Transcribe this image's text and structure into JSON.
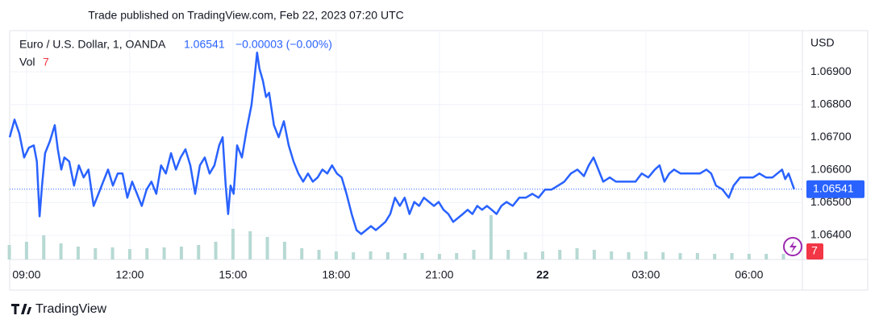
{
  "header": {
    "published": "Trade published on TradingView.com, Feb 22, 2023 07:20 UTC",
    "change": "−0.00003 (−0.00%)",
    "vol_label": "Vol",
    "currency": "USD",
    "brand": "TradingView"
  },
  "chart_data": {
    "type": "line",
    "last_price": 1.06541,
    "xlim": [
      8.51,
      31.55
    ],
    "ylim": [
      1.06326,
      1.07026
    ],
    "grid": true,
    "xticks": [
      {
        "value": 9,
        "label": "09:00"
      },
      {
        "value": 12,
        "label": "12:00"
      },
      {
        "value": 15,
        "label": "15:00"
      },
      {
        "value": 18,
        "label": "18:00"
      },
      {
        "value": 21,
        "label": "21:00"
      },
      {
        "value": 24,
        "label": "22"
      },
      {
        "value": 27,
        "label": "03:00"
      },
      {
        "value": 30,
        "label": "06:00"
      }
    ],
    "yticks": [
      {
        "value": 1.064,
        "label": "1.06400"
      },
      {
        "value": 1.065,
        "label": "1.06500"
      },
      {
        "value": 1.066,
        "label": "1.06600"
      },
      {
        "value": 1.067,
        "label": "1.06700"
      },
      {
        "value": 1.068,
        "label": "1.06800"
      },
      {
        "value": 1.069,
        "label": "1.06900"
      }
    ],
    "x": [
      8.51,
      8.65,
      8.79,
      8.93,
      9.07,
      9.21,
      9.3,
      9.38,
      9.45,
      9.54,
      9.68,
      9.82,
      9.91,
      10.01,
      10.1,
      10.24,
      10.38,
      10.52,
      10.66,
      10.8,
      10.95,
      11.09,
      11.23,
      11.37,
      11.51,
      11.65,
      11.79,
      11.93,
      12.07,
      12.21,
      12.35,
      12.49,
      12.63,
      12.77,
      12.91,
      13.05,
      13.2,
      13.34,
      13.48,
      13.62,
      13.76,
      13.9,
      14.04,
      14.18,
      14.32,
      14.46,
      14.6,
      14.7,
      14.79,
      14.86,
      14.93,
      15.02,
      15.12,
      15.26,
      15.4,
      15.54,
      15.63,
      15.7,
      15.77,
      15.87,
      15.96,
      16.05,
      16.19,
      16.33,
      16.48,
      16.62,
      16.76,
      16.9,
      17.04,
      17.18,
      17.32,
      17.46,
      17.6,
      17.74,
      17.88,
      18.02,
      18.16,
      18.3,
      18.45,
      18.59,
      18.73,
      18.87,
      19.01,
      19.15,
      19.29,
      19.43,
      19.57,
      19.71,
      19.85,
      19.99,
      20.13,
      20.27,
      20.41,
      20.55,
      20.7,
      20.84,
      20.98,
      21.12,
      21.26,
      21.4,
      21.54,
      21.68,
      21.82,
      21.96,
      22.1,
      22.24,
      22.38,
      22.52,
      22.66,
      22.8,
      22.95,
      23.13,
      23.32,
      23.51,
      23.7,
      23.88,
      24.07,
      24.26,
      24.45,
      24.63,
      24.82,
      25.01,
      25.2,
      25.34,
      25.48,
      25.62,
      25.76,
      25.95,
      26.13,
      26.32,
      26.51,
      26.7,
      26.88,
      27.07,
      27.26,
      27.4,
      27.54,
      27.68,
      27.82,
      28.01,
      28.2,
      28.38,
      28.57,
      28.76,
      28.9,
      29.04,
      29.23,
      29.41,
      29.55,
      29.74,
      29.93,
      30.12,
      30.3,
      30.49,
      30.68,
      30.82,
      30.96,
      31.05,
      31.15,
      31.31
    ],
    "series": [
      {
        "name": "Euro / U.S. Dollar, 1, OANDA",
        "color": "#2962ff",
        "values": [
          1.067,
          1.06754,
          1.06712,
          1.06638,
          1.06668,
          1.06675,
          1.06626,
          1.06458,
          1.06552,
          1.06651,
          1.06688,
          1.06737,
          1.06663,
          1.06601,
          1.06638,
          1.06626,
          1.06552,
          1.06614,
          1.06577,
          1.06601,
          1.0649,
          1.06527,
          1.06564,
          1.06601,
          1.06552,
          1.06589,
          1.06589,
          1.06515,
          1.06564,
          1.06527,
          1.0649,
          1.0654,
          1.06564,
          1.06527,
          1.06614,
          1.06589,
          1.06651,
          1.06601,
          1.06638,
          1.06663,
          1.06614,
          1.06527,
          1.06614,
          1.06638,
          1.06589,
          1.06614,
          1.06675,
          1.067,
          1.06552,
          1.06465,
          1.06552,
          1.06527,
          1.06675,
          1.06638,
          1.06725,
          1.06799,
          1.06885,
          1.06959,
          1.0691,
          1.06873,
          1.06823,
          1.06836,
          1.06737,
          1.067,
          1.06749,
          1.06675,
          1.06626,
          1.06589,
          1.06564,
          1.06589,
          1.06564,
          1.06577,
          1.06601,
          1.06589,
          1.06614,
          1.06589,
          1.06577,
          1.06527,
          1.06465,
          1.06416,
          1.06404,
          1.06416,
          1.06428,
          1.06416,
          1.06428,
          1.06441,
          1.06465,
          1.06515,
          1.0649,
          1.06515,
          1.06465,
          1.06502,
          1.0649,
          1.06515,
          1.06502,
          1.0649,
          1.06502,
          1.06478,
          1.06465,
          1.06441,
          1.06453,
          1.06465,
          1.06478,
          1.06465,
          1.0649,
          1.06478,
          1.0649,
          1.06478,
          1.06465,
          1.0649,
          1.06502,
          1.0649,
          1.06515,
          1.06515,
          1.06527,
          1.06515,
          1.0654,
          1.0654,
          1.06552,
          1.06564,
          1.06589,
          1.06601,
          1.06581,
          1.06614,
          1.06638,
          1.06601,
          1.06564,
          1.06577,
          1.06564,
          1.06564,
          1.06564,
          1.06564,
          1.06589,
          1.06577,
          1.06601,
          1.06614,
          1.06564,
          1.06589,
          1.06601,
          1.06589,
          1.06589,
          1.06589,
          1.06589,
          1.06601,
          1.06589,
          1.06552,
          1.0654,
          1.06515,
          1.06552,
          1.06577,
          1.06577,
          1.06577,
          1.06589,
          1.06577,
          1.06577,
          1.06589,
          1.06601,
          1.06572,
          1.06589,
          1.06541
        ]
      }
    ],
    "volume": {
      "color": "#b7d9d3",
      "x": [
        8.5,
        9,
        9.5,
        10,
        10.5,
        11,
        11.5,
        12,
        12.5,
        13,
        13.5,
        14,
        14.5,
        15,
        15.5,
        16,
        16.5,
        17,
        17.5,
        18,
        18.5,
        19,
        19.5,
        20,
        20.5,
        21,
        21.5,
        22,
        22.5,
        23,
        23.5,
        24,
        24.5,
        25,
        25.5,
        26,
        26.5,
        27,
        27.5,
        28,
        28.5,
        29,
        29.5,
        30,
        30.5,
        31
      ],
      "values": [
        18,
        22,
        30,
        20,
        16,
        14,
        15,
        13,
        14,
        15,
        16,
        18,
        22,
        38,
        35,
        28,
        22,
        14,
        12,
        10,
        9,
        10,
        9,
        8,
        8,
        7,
        8,
        12,
        55,
        12,
        9,
        10,
        12,
        14,
        12,
        10,
        9,
        10,
        9,
        8,
        8,
        7,
        8,
        7,
        7,
        7
      ]
    }
  }
}
